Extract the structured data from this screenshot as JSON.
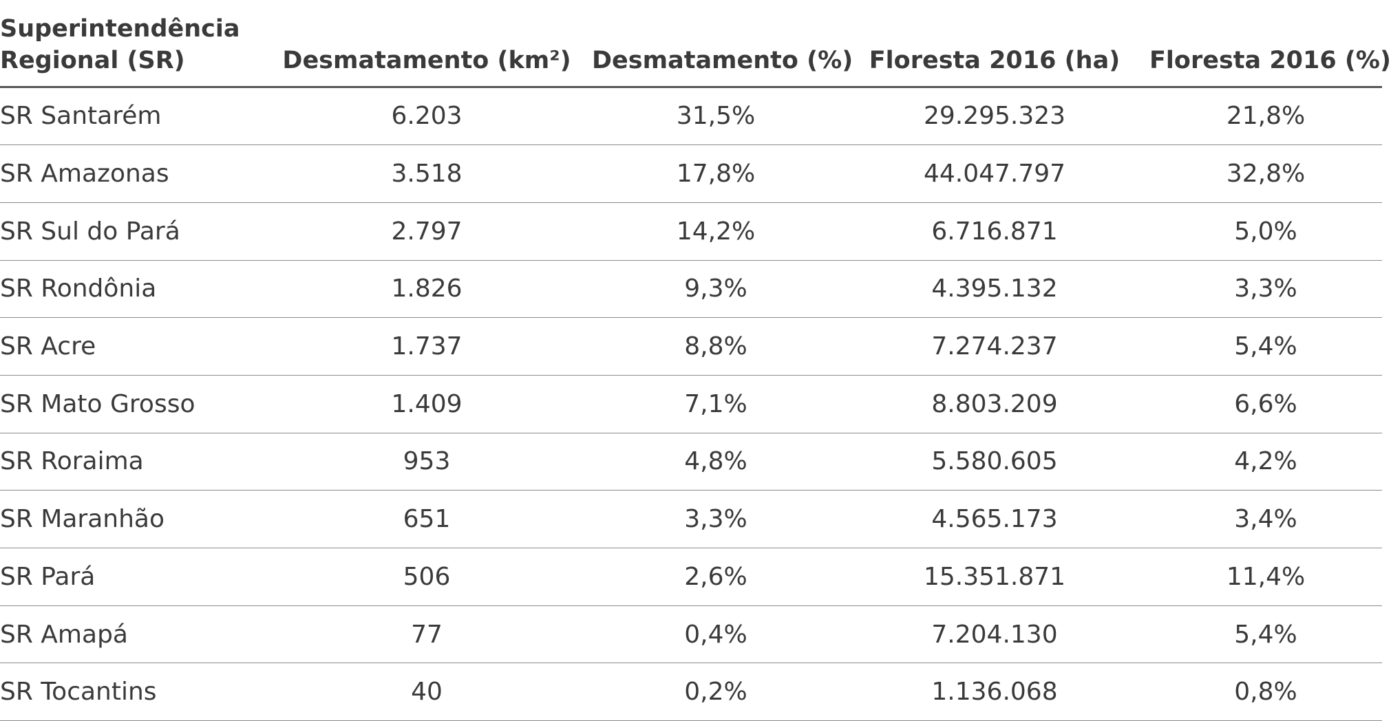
{
  "table": {
    "headers": [
      "Superintendência Regional (SR)",
      "Desmatamento (km²)",
      "Desmatamento (%)",
      "Floresta 2016 (ha)",
      "Floresta 2016 (%)"
    ],
    "header_first_line1": "Superintendência",
    "header_first_line2": "Regional (SR)",
    "rows": [
      [
        "SR Santarém",
        "6.203",
        "31,5%",
        "29.295.323",
        "21,8%"
      ],
      [
        "SR Amazonas",
        "3.518",
        "17,8%",
        "44.047.797",
        "32,8%"
      ],
      [
        "SR Sul do Pará",
        "2.797",
        "14,2%",
        "6.716.871",
        "5,0%"
      ],
      [
        "SR Rondônia",
        "1.826",
        "9,3%",
        "4.395.132",
        "3,3%"
      ],
      [
        "SR Acre",
        "1.737",
        "8,8%",
        "7.274.237",
        "5,4%"
      ],
      [
        "SR Mato Grosso",
        "1.409",
        "7,1%",
        "8.803.209",
        "6,6%"
      ],
      [
        "SR Roraima",
        "953",
        "4,8%",
        "5.580.605",
        "4,2%"
      ],
      [
        "SR Maranhão",
        "651",
        "3,3%",
        "4.565.173",
        "3,4%"
      ],
      [
        "SR Pará",
        "506",
        "2,6%",
        "15.351.871",
        "11,4%"
      ],
      [
        "SR Amapá",
        "77",
        "0,4%",
        "7.204.130",
        "5,4%"
      ],
      [
        "SR Tocantins",
        "40",
        "0,2%",
        "1.136.068",
        "0,8%"
      ]
    ]
  },
  "colors": {
    "text": "#3a3a3a",
    "header_rule": "#555555",
    "row_rule": "#8a8a8a",
    "background": "#ffffff"
  }
}
